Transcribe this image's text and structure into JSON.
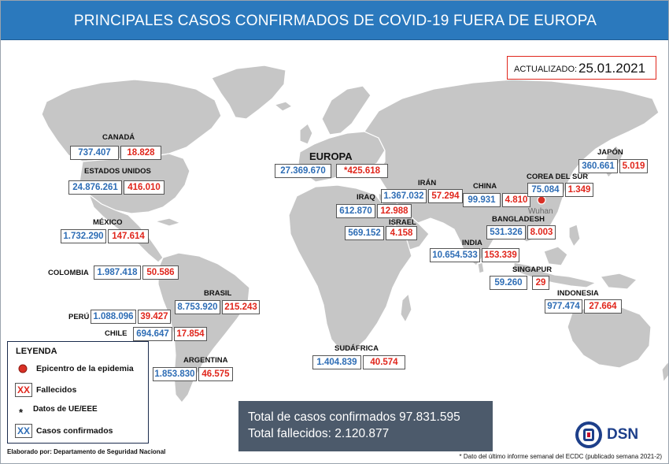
{
  "title": "PRINCIPALES CASOS CONFIRMADOS DE COVID-19 FUERA DE EUROPA",
  "updated": {
    "label": "ACTUALIZADO:",
    "date": "25.01.2021"
  },
  "regions": {
    "canada": {
      "name": "CANADÁ",
      "confirmed": "737.407",
      "deaths": "18.828"
    },
    "usa": {
      "name": "ESTADOS UNIDOS",
      "confirmed": "24.876.261",
      "deaths": "416.010"
    },
    "mexico": {
      "name": "MÉXICO",
      "confirmed": "1.732.290",
      "deaths": "147.614"
    },
    "colombia": {
      "name": "COLOMBIA",
      "confirmed": "1.987.418",
      "deaths": "50.586"
    },
    "brasil": {
      "name": "BRASIL",
      "confirmed": "8.753.920",
      "deaths": "215.243"
    },
    "peru": {
      "name": "PERÚ",
      "confirmed": "1.088.096",
      "deaths": "39.427"
    },
    "chile": {
      "name": "CHILE",
      "confirmed": "694.647",
      "deaths": "17.854"
    },
    "argentina": {
      "name": "ARGENTINA",
      "confirmed": "1.853.830",
      "deaths": "46.575"
    },
    "europa": {
      "name": "EUROPA",
      "confirmed": "27.369.670",
      "deaths": "*425.618"
    },
    "iran": {
      "name": "IRÁN",
      "confirmed": "1.367.032",
      "deaths": "57.294"
    },
    "iraq": {
      "name": "IRAQ",
      "confirmed": "612.870",
      "deaths": "12.988"
    },
    "israel": {
      "name": "ISRAEL",
      "confirmed": "569.152",
      "deaths": "4.158"
    },
    "china": {
      "name": "CHINA",
      "confirmed": "99.931",
      "deaths": "4.810"
    },
    "corea": {
      "name": "COREA DEL SUR",
      "confirmed": "75.084",
      "deaths": "1.349"
    },
    "japon": {
      "name": "JAPÓN",
      "confirmed": "360.661",
      "deaths": "5.019"
    },
    "bangladesh": {
      "name": "BANGLADESH",
      "confirmed": "531.326",
      "deaths": "8.003"
    },
    "india": {
      "name": "INDIA",
      "confirmed": "10.654.533",
      "deaths": "153.339"
    },
    "singapur": {
      "name": "SINGAPUR",
      "confirmed": "59.260",
      "deaths": "29"
    },
    "indonesia": {
      "name": "INDONESIA",
      "confirmed": "977.474",
      "deaths": "27.664"
    },
    "sudafrica": {
      "name": "SUDÁFRICA",
      "confirmed": "1.404.839",
      "deaths": "40.574"
    }
  },
  "epicenter": {
    "name": "Wuhan"
  },
  "legend": {
    "title": "LEYENDA",
    "epicenter": "Epicentro de la epidemia",
    "deaths_symbol": "XX",
    "deaths": "Fallecidos",
    "eu_symbol": "*",
    "eu": "Datos de UE/EEE",
    "confirmed_symbol": "XX",
    "confirmed": "Casos confirmados"
  },
  "totals": {
    "confirmed": "Total de casos confirmados 97.831.595",
    "deaths": "Total fallecidos: 2.120.877"
  },
  "footer": {
    "credit": "Elaborado por: Departamento de Seguridad Nacional",
    "note": "* Dato del último informe semanal del ECDC (publicado semana 2021-2)"
  },
  "logo": {
    "text": "DSN"
  },
  "colors": {
    "banner": "#2b79bd",
    "confirmed": "#2e6db5",
    "deaths": "#e0261c",
    "land": "#c6c6c6",
    "totals_bg": "#4c5a6b"
  }
}
